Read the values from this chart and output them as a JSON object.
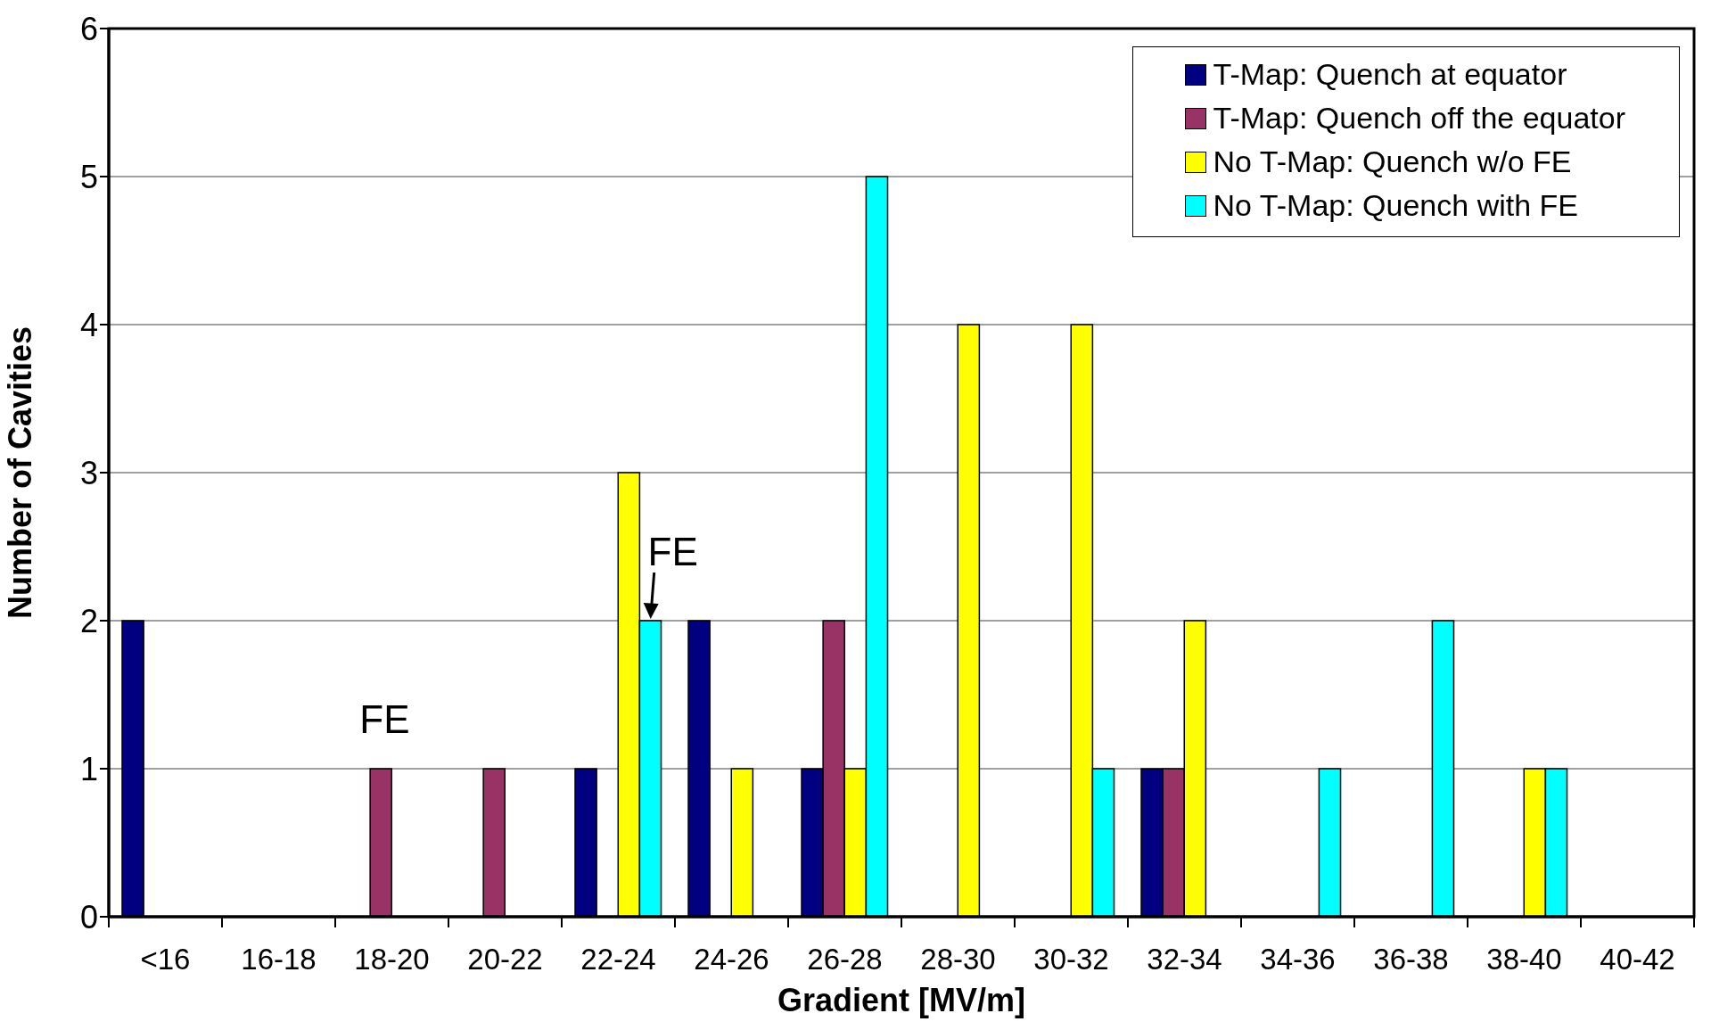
{
  "chart_data": {
    "type": "bar",
    "xlabel": "Gradient [MV/m]",
    "ylabel": "Number of Cavities",
    "categories": [
      "<16",
      "16-18",
      "18-20",
      "20-22",
      "22-24",
      "24-26",
      "26-28",
      "28-30",
      "30-32",
      "32-34",
      "34-36",
      "36-38",
      "38-40",
      "40-42"
    ],
    "series": [
      {
        "name": "T-Map: Quench at equator",
        "color": "#000080",
        "values": [
          2,
          0,
          0,
          0,
          1,
          2,
          1,
          0,
          0,
          1,
          0,
          0,
          0,
          0
        ]
      },
      {
        "name": "T-Map: Quench off the equator",
        "color": "#993366",
        "values": [
          0,
          0,
          1,
          1,
          0,
          0,
          2,
          0,
          0,
          1,
          0,
          0,
          0,
          0
        ]
      },
      {
        "name": "No T-Map: Quench w/o FE",
        "color": "#ffff00",
        "values": [
          0,
          0,
          0,
          0,
          3,
          1,
          1,
          4,
          4,
          2,
          0,
          0,
          1,
          0
        ]
      },
      {
        "name": "No T-Map: Quench with FE",
        "color": "#00ffff",
        "values": [
          0,
          0,
          0,
          0,
          2,
          0,
          5,
          0,
          1,
          0,
          1,
          2,
          1,
          0
        ]
      }
    ],
    "ylim": [
      0,
      6
    ],
    "yticks": [
      0,
      1,
      2,
      3,
      4,
      5,
      6
    ],
    "grid": "y",
    "legend": "top right",
    "annotations": [
      {
        "text": "FE",
        "x": "18-20",
        "y": 1
      },
      {
        "text": "FE",
        "x": "22-24",
        "y": 2
      }
    ]
  }
}
